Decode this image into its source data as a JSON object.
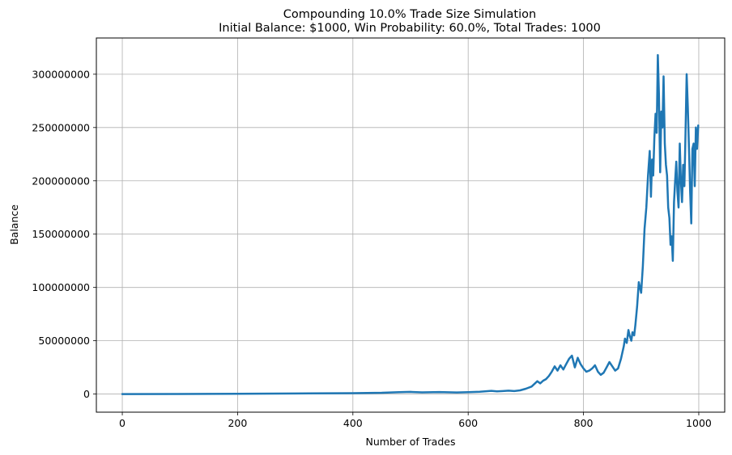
{
  "chart_data": {
    "type": "line",
    "title": "Compounding 10.0% Trade Size Simulation",
    "subtitle": "Initial Balance: $1000, Win Probability: 60.0%, Total Trades: 1000",
    "xlabel": "Number of Trades",
    "ylabel": "Balance",
    "xlim": [
      -45,
      1045
    ],
    "ylim": [
      -17000000,
      334000000
    ],
    "xticks": [
      0,
      200,
      400,
      600,
      800,
      1000
    ],
    "yticks": [
      0,
      50000000,
      100000000,
      150000000,
      200000000,
      250000000,
      300000000
    ],
    "grid": true,
    "line_color": "#1f77b4",
    "series": [
      {
        "name": "Balance",
        "x": [
          0,
          100,
          200,
          300,
          400,
          450,
          480,
          500,
          520,
          550,
          580,
          600,
          620,
          640,
          650,
          660,
          670,
          680,
          690,
          700,
          710,
          720,
          725,
          730,
          735,
          740,
          745,
          750,
          755,
          760,
          765,
          770,
          775,
          780,
          785,
          790,
          795,
          800,
          805,
          810,
          815,
          820,
          825,
          830,
          835,
          840,
          845,
          850,
          855,
          860,
          865,
          870,
          872,
          875,
          878,
          880,
          883,
          885,
          888,
          890,
          893,
          896,
          900,
          903,
          906,
          909,
          912,
          915,
          917,
          919,
          921,
          923,
          925,
          927,
          929,
          931,
          933,
          935,
          937,
          939,
          941,
          943,
          945,
          947,
          949,
          951,
          953,
          955,
          957,
          959,
          961,
          963,
          965,
          967,
          969,
          971,
          973,
          975,
          977,
          979,
          981,
          983,
          985,
          987,
          989,
          991,
          993,
          995,
          997,
          999
        ],
        "values": [
          1000,
          50000,
          200000,
          500000,
          800000,
          1200000,
          1800000,
          2000000,
          1600000,
          1900000,
          1500000,
          1700000,
          2200000,
          3000000,
          2500000,
          2800000,
          3200000,
          2800000,
          3500000,
          5000000,
          7000000,
          12000000,
          10000000,
          12500000,
          14000000,
          17000000,
          21000000,
          26000000,
          22000000,
          27000000,
          23000000,
          28000000,
          33000000,
          36000000,
          25000000,
          34000000,
          28000000,
          24000000,
          21000000,
          22000000,
          24000000,
          27000000,
          21000000,
          18000000,
          20000000,
          25000000,
          30000000,
          26000000,
          22000000,
          24000000,
          33000000,
          45000000,
          52000000,
          48000000,
          60000000,
          55000000,
          50000000,
          58000000,
          55000000,
          65000000,
          82000000,
          105000000,
          95000000,
          120000000,
          155000000,
          175000000,
          205000000,
          228000000,
          185000000,
          220000000,
          205000000,
          240000000,
          263000000,
          245000000,
          318000000,
          280000000,
          208000000,
          265000000,
          250000000,
          298000000,
          235000000,
          215000000,
          205000000,
          175000000,
          165000000,
          140000000,
          148000000,
          125000000,
          180000000,
          200000000,
          218000000,
          190000000,
          175000000,
          235000000,
          200000000,
          180000000,
          215000000,
          195000000,
          245000000,
          300000000,
          270000000,
          230000000,
          190000000,
          160000000,
          230000000,
          235000000,
          195000000,
          250000000,
          230000000,
          252000000
        ]
      }
    ]
  }
}
